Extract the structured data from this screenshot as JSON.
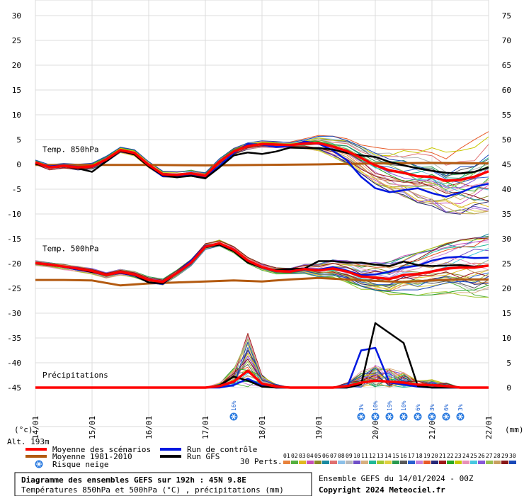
{
  "chart_data": {
    "type": "line",
    "left_axis": {
      "unit": "(°c)",
      "ylim": [
        -45,
        30
      ],
      "ticks": [
        30,
        25,
        20,
        15,
        10,
        5,
        0,
        -5,
        -10,
        -15,
        -20,
        -25,
        -30,
        -35,
        -40,
        -45
      ]
    },
    "right_axis": {
      "unit": "(mm)",
      "ylim": [
        0,
        75
      ],
      "ticks": [
        75,
        70,
        65,
        60,
        55,
        50,
        45,
        40,
        35,
        30,
        25,
        20,
        15,
        10,
        5,
        0
      ]
    },
    "x_range": [
      0,
      192
    ],
    "date_ticks": [
      {
        "h": 0,
        "label": "14/01"
      },
      {
        "h": 24,
        "label": "15/01"
      },
      {
        "h": 48,
        "label": "16/01"
      },
      {
        "h": 72,
        "label": "17/01"
      },
      {
        "h": 96,
        "label": "18/01"
      },
      {
        "h": 120,
        "label": "19/01"
      },
      {
        "h": 144,
        "label": "20/01"
      },
      {
        "h": 168,
        "label": "21/01"
      },
      {
        "h": 192,
        "label": "22/01"
      }
    ],
    "section_labels": [
      {
        "text": "Temp. 850hPa",
        "h": 3,
        "y": 2.5
      },
      {
        "text": "Temp. 500hPa",
        "h": 3,
        "y": -17.5
      },
      {
        "text": "Précipitations",
        "h": 3,
        "y": -43
      }
    ],
    "altitude_label": "Alt. 193m",
    "snow_risk": [
      {
        "h": 84,
        "pct": "16%"
      },
      {
        "h": 138,
        "pct": "3%"
      },
      {
        "h": 144,
        "pct": "10%"
      },
      {
        "h": 150,
        "pct": "19%"
      },
      {
        "h": 156,
        "pct": "10%"
      },
      {
        "h": 162,
        "pct": "6%"
      },
      {
        "h": 168,
        "pct": "3%"
      },
      {
        "h": 174,
        "pct": "6%"
      },
      {
        "h": 180,
        "pct": "3%"
      }
    ],
    "series": [
      {
        "name": "Moyenne des scénarios",
        "color": "#ff0000",
        "width": 3.5,
        "axis": "temp",
        "x": [
          0,
          6,
          12,
          18,
          24,
          30,
          36,
          42,
          48,
          54,
          60,
          66,
          72,
          78,
          84,
          90,
          96,
          102,
          108,
          114,
          120,
          126,
          132,
          138,
          144,
          150,
          156,
          162,
          168,
          174,
          180,
          186,
          192
        ],
        "y": [
          0.4,
          -0.6,
          -0.3,
          -0.6,
          -0.4,
          1.0,
          2.9,
          2.3,
          -0.1,
          -2.0,
          -2.1,
          -1.8,
          -2.3,
          0.6,
          2.6,
          3.7,
          4.1,
          4.0,
          3.9,
          4.2,
          4.3,
          3.6,
          2.7,
          1.3,
          -0.2,
          -1.2,
          -1.7,
          -2.4,
          -2.5,
          -3.3,
          -3.1,
          -2.5,
          -1.4
        ]
      },
      {
        "name": "Moyenne des scénarios",
        "color": "#ff0000",
        "width": 3.5,
        "axis": "temp",
        "x": [
          0,
          6,
          12,
          18,
          24,
          30,
          36,
          42,
          48,
          54,
          60,
          66,
          72,
          78,
          84,
          90,
          96,
          102,
          108,
          114,
          120,
          126,
          132,
          138,
          144,
          150,
          156,
          162,
          168,
          174,
          180,
          186,
          192
        ],
        "y": [
          -19.9,
          -20.2,
          -20.6,
          -21.0,
          -21.5,
          -22.3,
          -21.7,
          -22.2,
          -23.3,
          -23.7,
          -21.9,
          -19.8,
          -16.6,
          -15.9,
          -17.2,
          -19.4,
          -20.7,
          -21.5,
          -21.6,
          -21.1,
          -21.4,
          -21.0,
          -21.6,
          -22.6,
          -22.8,
          -23.1,
          -22.3,
          -22.1,
          -21.6,
          -21.0,
          -20.8,
          -20.8,
          -20.4
        ]
      },
      {
        "name": "Moyenne des scénarios",
        "color": "#ff0000",
        "width": 3.5,
        "axis": "precip",
        "x": [
          0,
          6,
          12,
          18,
          24,
          30,
          36,
          42,
          48,
          54,
          60,
          66,
          72,
          78,
          84,
          90,
          96,
          102,
          108,
          114,
          120,
          126,
          132,
          138,
          144,
          150,
          156,
          162,
          168,
          174,
          180,
          186,
          192
        ],
        "y": [
          0,
          0,
          0,
          0,
          0,
          0,
          0,
          0,
          0,
          0,
          0,
          0,
          0,
          0.3,
          1.2,
          3.4,
          0.8,
          0.2,
          0,
          0,
          0,
          0,
          0.3,
          1.0,
          1.4,
          1.2,
          1.0,
          0.6,
          0.5,
          0.3,
          0,
          0,
          0
        ]
      },
      {
        "name": "Moyenne 1981-2010",
        "color": "#b35a10",
        "width": 3,
        "axis": "temp",
        "x": [
          0,
          24,
          48,
          72,
          96,
          120,
          144,
          168,
          192
        ],
        "y": [
          -0.1,
          -0.1,
          -0.1,
          -0.2,
          -0.1,
          0,
          0.2,
          0.3,
          0.2
        ]
      },
      {
        "name": "Moyenne 1981-2010",
        "color": "#b35a10",
        "width": 3,
        "axis": "temp",
        "x": [
          0,
          12,
          24,
          36,
          48,
          60,
          72,
          84,
          96,
          108,
          120,
          132,
          144,
          156,
          168,
          180,
          192
        ],
        "y": [
          -23.3,
          -23.3,
          -23.4,
          -24.4,
          -24.0,
          -23.8,
          -23.6,
          -23.4,
          -23.6,
          -23.2,
          -22.9,
          -23.2,
          -23.5,
          -23.7,
          -23.4,
          -23.2,
          -23.2
        ]
      },
      {
        "name": "Run de contrôle",
        "color": "#0018e0",
        "width": 2.5,
        "axis": "temp",
        "x": [
          0,
          6,
          12,
          18,
          24,
          30,
          36,
          42,
          48,
          54,
          60,
          66,
          72,
          78,
          84,
          90,
          96,
          102,
          108,
          114,
          120,
          126,
          132,
          138,
          144,
          150,
          156,
          162,
          168,
          174,
          180,
          186,
          192
        ],
        "y": [
          0.2,
          -0.4,
          -0.2,
          -0.5,
          -0.5,
          0.8,
          2.9,
          2.2,
          -0.4,
          -2.4,
          -2.5,
          -2.0,
          -2.6,
          -0.3,
          2.3,
          4.1,
          4.0,
          3.5,
          3.7,
          4.6,
          4.2,
          2.8,
          0.8,
          -2.5,
          -4.8,
          -5.6,
          -5.2,
          -4.8,
          -5.8,
          -6.5,
          -5.7,
          -4.5,
          -3.9
        ]
      },
      {
        "name": "Run de contrôle",
        "color": "#0018e0",
        "width": 2.5,
        "axis": "temp",
        "x": [
          0,
          6,
          12,
          18,
          24,
          30,
          36,
          42,
          48,
          54,
          60,
          66,
          72,
          78,
          84,
          90,
          96,
          102,
          108,
          114,
          120,
          126,
          132,
          138,
          144,
          150,
          156,
          162,
          168,
          174,
          180,
          186,
          192
        ],
        "y": [
          -19.8,
          -20.1,
          -20.7,
          -21.2,
          -21.7,
          -22.3,
          -21.9,
          -22.4,
          -23.8,
          -24.1,
          -21.8,
          -19.4,
          -16.4,
          -16.0,
          -17.4,
          -19.7,
          -20.8,
          -21.6,
          -21.2,
          -21.0,
          -21.2,
          -20.7,
          -21.4,
          -22.3,
          -22.2,
          -21.6,
          -20.8,
          -20.4,
          -19.4,
          -18.8,
          -18.6,
          -18.9,
          -18.8
        ]
      },
      {
        "name": "Run de contrôle",
        "color": "#0018e0",
        "width": 2.5,
        "axis": "precip",
        "x": [
          0,
          6,
          12,
          18,
          24,
          30,
          36,
          42,
          48,
          54,
          60,
          66,
          72,
          78,
          84,
          90,
          96,
          102,
          108,
          114,
          120,
          126,
          132,
          138,
          144,
          150,
          156,
          162,
          168,
          174,
          180,
          186,
          192
        ],
        "y": [
          0,
          0,
          0,
          0,
          0,
          0,
          0,
          0,
          0,
          0,
          0,
          0,
          0,
          0,
          0.5,
          1.8,
          0.4,
          0,
          0,
          0,
          0,
          0,
          0,
          7.5,
          8.0,
          1.0,
          0.6,
          0.2,
          0,
          0,
          0,
          0,
          0
        ]
      },
      {
        "name": "Run GFS",
        "color": "#000000",
        "width": 2.5,
        "axis": "temp",
        "x": [
          0,
          6,
          12,
          18,
          24,
          30,
          36,
          42,
          48,
          54,
          60,
          66,
          72,
          78,
          84,
          90,
          96,
          102,
          108,
          114,
          120,
          126,
          132,
          138,
          144,
          150,
          156,
          162,
          168,
          174,
          180,
          186,
          192
        ],
        "y": [
          0.1,
          -0.5,
          -0.3,
          -0.8,
          -1.5,
          0.6,
          2.8,
          2.0,
          -0.4,
          -2.2,
          -2.6,
          -2.3,
          -2.8,
          -0.6,
          1.8,
          2.4,
          2.1,
          2.6,
          3.4,
          3.3,
          3.3,
          3.0,
          2.3,
          1.8,
          1.5,
          0.5,
          -0.2,
          -0.8,
          -1.3,
          -1.7,
          -1.8,
          -1.5,
          -0.6
        ]
      },
      {
        "name": "Run GFS",
        "color": "#000000",
        "width": 2.5,
        "axis": "temp",
        "x": [
          0,
          6,
          12,
          18,
          24,
          30,
          36,
          42,
          48,
          54,
          60,
          66,
          72,
          78,
          84,
          90,
          96,
          102,
          108,
          114,
          120,
          126,
          132,
          138,
          144,
          150,
          156,
          162,
          168,
          174,
          180,
          186,
          192
        ],
        "y": [
          -19.9,
          -20.3,
          -20.6,
          -21.1,
          -21.7,
          -22.2,
          -21.8,
          -22.3,
          -23.8,
          -24.0,
          -21.9,
          -19.8,
          -16.7,
          -16.2,
          -17.5,
          -19.8,
          -20.8,
          -21.3,
          -21.1,
          -21.0,
          -19.5,
          -19.5,
          -19.8,
          -19.8,
          -20.2,
          -20.5,
          -19.6,
          -20.3,
          -20.5,
          -20.4,
          -20.3,
          -20.6,
          -20.4
        ]
      },
      {
        "name": "Run GFS",
        "color": "#000000",
        "width": 2.5,
        "axis": "precip",
        "x": [
          0,
          6,
          12,
          18,
          24,
          30,
          36,
          42,
          48,
          54,
          60,
          66,
          72,
          78,
          84,
          90,
          96,
          102,
          108,
          114,
          120,
          126,
          132,
          138,
          144,
          150,
          156,
          162,
          168,
          174,
          180,
          186,
          192
        ],
        "y": [
          0,
          0,
          0,
          0,
          0,
          0,
          0,
          0,
          0,
          0,
          0,
          0,
          0,
          0.4,
          2.2,
          1.4,
          0.2,
          0,
          0,
          0,
          0,
          0,
          0,
          0.6,
          13.0,
          11.0,
          9.0,
          0.3,
          0,
          0,
          0,
          0,
          0
        ]
      }
    ]
  },
  "legend": {
    "items": [
      {
        "label": "Moyenne des scénarios",
        "color": "#ff0000"
      },
      {
        "label": "Moyenne 1981-2010",
        "color": "#b35a10"
      },
      {
        "label": "Risque neige",
        "color": "#1a5fd0",
        "icon": "snowflake-icon"
      },
      {
        "label": "Run de contrôle",
        "color": "#0018e0"
      },
      {
        "label": "Run GFS",
        "color": "#000000"
      }
    ],
    "perts_label": "30 Perts.",
    "perts": [
      {
        "n": "01",
        "color": "#e8823c"
      },
      {
        "n": "02",
        "color": "#55b040"
      },
      {
        "n": "03",
        "color": "#e0b820"
      },
      {
        "n": "04",
        "color": "#c850b8"
      },
      {
        "n": "05",
        "color": "#8a8a28"
      },
      {
        "n": "06",
        "color": "#1a8aa0"
      },
      {
        "n": "07",
        "color": "#e07070"
      },
      {
        "n": "08",
        "color": "#8cc0e8"
      },
      {
        "n": "09",
        "color": "#b8b8b8"
      },
      {
        "n": "10",
        "color": "#7050c8"
      },
      {
        "n": "11",
        "color": "#d8b080"
      },
      {
        "n": "12",
        "color": "#20b898"
      },
      {
        "n": "13",
        "color": "#a0c830"
      },
      {
        "n": "14",
        "color": "#e0d040"
      },
      {
        "n": "15",
        "color": "#2a9a50"
      },
      {
        "n": "16",
        "color": "#5a5a5a"
      },
      {
        "n": "17",
        "color": "#2860d0"
      },
      {
        "n": "18",
        "color": "#c880d8"
      },
      {
        "n": "19",
        "color": "#e85a28"
      },
      {
        "n": "20",
        "color": "#282878"
      },
      {
        "n": "21",
        "color": "#a01818"
      },
      {
        "n": "22",
        "color": "#28a828"
      },
      {
        "n": "23",
        "color": "#c8c800"
      },
      {
        "n": "24",
        "color": "#e890b8"
      },
      {
        "n": "25",
        "color": "#48c8e0"
      },
      {
        "n": "26",
        "color": "#8858d8"
      },
      {
        "n": "27",
        "color": "#98c050"
      },
      {
        "n": "28",
        "color": "#c8a060"
      },
      {
        "n": "29",
        "color": "#881818"
      },
      {
        "n": "30",
        "color": "#1848b8"
      }
    ]
  },
  "footer": {
    "title": "Diagramme des ensembles GEFS sur 192h : 45N 9.8E",
    "subtitle": "Températures 850hPa et 500hPa (°C) , précipitations (mm)",
    "run": "Ensemble GEFS du 14/01/2024 - 00Z",
    "copyright": "Copyright 2024 Meteociel.fr"
  }
}
